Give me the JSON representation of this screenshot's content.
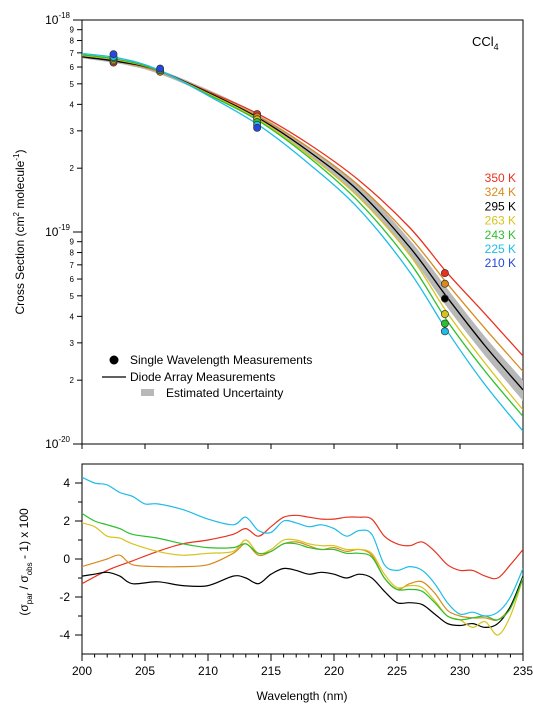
{
  "chart_data": [
    {
      "type": "line",
      "annotation_main": "CCl",
      "annotation_sub": "4",
      "ylabel": "Cross Section (cm",
      "ylabel_sup1": "2",
      "ylabel_mid": " molecule",
      "ylabel_sup2": "-1",
      "ylabel_end": ")",
      "yscale": "log",
      "ylim": [
        1e-20,
        1e-18
      ],
      "xlim": [
        200,
        235
      ],
      "y_decade_labels": [
        {
          "value": 1e-18,
          "base": "10",
          "exp": "-18"
        },
        {
          "value": 1e-19,
          "base": "10",
          "exp": "-19"
        },
        {
          "value": 1e-20,
          "base": "10",
          "exp": "-20"
        }
      ],
      "y_minor_labels": [
        "2",
        "3",
        "4",
        "5",
        "6",
        "7",
        "8",
        "9"
      ],
      "series": [
        {
          "name": "350 K",
          "color": "#e8321e",
          "x": [
            200,
            203,
            206,
            210,
            214,
            218,
            222,
            226,
            229,
            232,
            235
          ],
          "y": [
            6.75e-19,
            6.35e-19,
            5.75e-19,
            4.6e-19,
            3.6e-19,
            2.6e-19,
            1.75e-19,
            1.05e-19,
            6.4e-20,
            4.1e-20,
            2.6e-20
          ]
        },
        {
          "name": "324 K",
          "color": "#d88a1e",
          "x": [
            200,
            203,
            206,
            210,
            214,
            218,
            222,
            226,
            229,
            232,
            235
          ],
          "y": [
            6.75e-19,
            6.35e-19,
            5.75e-19,
            4.55e-19,
            3.5e-19,
            2.5e-19,
            1.65e-19,
            9.5e-20,
            5.7e-20,
            3.5e-20,
            2.2e-20
          ]
        },
        {
          "name": "295 K",
          "color": "#000000",
          "x": [
            200,
            203,
            206,
            210,
            214,
            218,
            222,
            226,
            229,
            232,
            235
          ],
          "y": [
            6.7e-19,
            6.35e-19,
            5.8e-19,
            4.55e-19,
            3.45e-19,
            2.4e-19,
            1.55e-19,
            8.5e-20,
            4.9e-20,
            2.9e-20,
            1.8e-20
          ]
        },
        {
          "name": "263 K",
          "color": "#d6c41e",
          "x": [
            200,
            203,
            206,
            210,
            214,
            218,
            222,
            226,
            229,
            232,
            235
          ],
          "y": [
            6.8e-19,
            6.45e-19,
            5.8e-19,
            4.5e-19,
            3.4e-19,
            2.3e-19,
            1.45e-19,
            7.8e-20,
            4.15e-20,
            2.4e-20,
            1.45e-20
          ]
        },
        {
          "name": "243 K",
          "color": "#2ebf2e",
          "x": [
            200,
            203,
            206,
            210,
            214,
            218,
            222,
            226,
            229,
            232,
            235
          ],
          "y": [
            6.85e-19,
            6.5e-19,
            5.8e-19,
            4.45e-19,
            3.35e-19,
            2.25e-19,
            1.38e-19,
            7.2e-20,
            3.8e-20,
            2.2e-20,
            1.35e-20
          ]
        },
        {
          "name": "225 K",
          "color": "#1ebce8",
          "x": [
            200,
            203,
            206,
            210,
            214,
            218,
            222,
            226,
            229,
            232,
            235
          ],
          "y": [
            6.95e-19,
            6.6e-19,
            5.85e-19,
            4.4e-19,
            3.2e-19,
            2.1e-19,
            1.28e-19,
            6.5e-20,
            3.4e-20,
            1.9e-20,
            1.15e-20
          ]
        },
        {
          "name": "210 K",
          "color": "#2248e0",
          "x": [],
          "y": []
        }
      ],
      "uncertainty_band": {
        "x": [
          200,
          205,
          210,
          214,
          218,
          222,
          226,
          229,
          232,
          235
        ],
        "lower": [
          6.6e-19,
          5.85e-19,
          4.45e-19,
          3.35e-19,
          2.3e-19,
          1.45e-19,
          7.8e-20,
          4.4e-20,
          2.6e-20,
          1.6e-20
        ],
        "upper": [
          6.8e-19,
          6.1e-19,
          4.7e-19,
          3.58e-19,
          2.52e-19,
          1.66e-19,
          9.2e-20,
          5.4e-20,
          3.2e-20,
          2e-20
        ]
      },
      "points": [
        {
          "x": 202.5,
          "y": 6.3e-19,
          "color": "#e8321e"
        },
        {
          "x": 202.5,
          "y": 6.4e-19,
          "color": "#d88a1e"
        },
        {
          "x": 202.5,
          "y": 6.5e-19,
          "color": "#d6c41e"
        },
        {
          "x": 202.5,
          "y": 6.6e-19,
          "color": "#2ebf2e"
        },
        {
          "x": 202.5,
          "y": 6.7e-19,
          "color": "#1ebce8"
        },
        {
          "x": 202.5,
          "y": 6.9e-19,
          "color": "#2248e0"
        },
        {
          "x": 206.2,
          "y": 5.7e-19,
          "color": "#d88a1e"
        },
        {
          "x": 206.2,
          "y": 5.8e-19,
          "color": "#2ebf2e"
        },
        {
          "x": 206.2,
          "y": 5.9e-19,
          "color": "#2248e0"
        },
        {
          "x": 213.9,
          "y": 3.6e-19,
          "color": "#e8321e"
        },
        {
          "x": 213.9,
          "y": 3.5e-19,
          "color": "#d88a1e"
        },
        {
          "x": 213.9,
          "y": 3.4e-19,
          "color": "#d6c41e"
        },
        {
          "x": 213.9,
          "y": 3.3e-19,
          "color": "#2ebf2e"
        },
        {
          "x": 213.9,
          "y": 3.2e-19,
          "color": "#1ebce8"
        },
        {
          "x": 213.9,
          "y": 3.1e-19,
          "color": "#2248e0"
        },
        {
          "x": 228.8,
          "y": 6.4e-20,
          "color": "#e8321e"
        },
        {
          "x": 228.8,
          "y": 5.7e-20,
          "color": "#d88a1e"
        },
        {
          "x": 228.8,
          "y": 4.85e-20,
          "color": "#000000"
        },
        {
          "x": 228.8,
          "y": 4.1e-20,
          "color": "#d6c41e"
        },
        {
          "x": 228.8,
          "y": 3.7e-20,
          "color": "#2ebf2e"
        },
        {
          "x": 228.8,
          "y": 3.4e-20,
          "color": "#1ebce8"
        }
      ],
      "legend": [
        {
          "kind": "point",
          "label": "Single Wavelength Measurements"
        },
        {
          "kind": "line",
          "label": "Diode Array Measurements"
        },
        {
          "kind": "band",
          "label": "Estimated Uncertainty"
        }
      ]
    },
    {
      "type": "line",
      "xlabel": "Wavelength (nm)",
      "ylabel_open": "(σ",
      "ylabel_sub1": "par",
      "ylabel_mid": " / σ",
      "ylabel_sub2": "obs",
      "ylabel_end": " - 1) x 100",
      "xlim": [
        200,
        235
      ],
      "ylim": [
        -5,
        5
      ],
      "xticks": [
        200,
        205,
        210,
        215,
        220,
        225,
        230,
        235
      ],
      "yticks": [
        4,
        2,
        0,
        -2,
        -4
      ],
      "series": [
        {
          "name": "350 K",
          "color": "#e8321e",
          "x": [
            200,
            202,
            204,
            206,
            208,
            210,
            212,
            213,
            214,
            215,
            216,
            217,
            218,
            219,
            220,
            221,
            222,
            223,
            224,
            225,
            226,
            227,
            228,
            229,
            230,
            231,
            232,
            233,
            234,
            235
          ],
          "y": [
            -1.3,
            -0.6,
            -0.1,
            0.4,
            0.8,
            1.0,
            1.3,
            1.6,
            1.2,
            1.7,
            2.2,
            2.3,
            2.2,
            2.1,
            2.1,
            2.2,
            2.2,
            2.1,
            1.2,
            0.8,
            0.7,
            0.9,
            0.4,
            -0.3,
            -0.6,
            -0.6,
            -0.9,
            -1.0,
            -0.3,
            0.5
          ]
        },
        {
          "name": "324 K",
          "color": "#d88a1e",
          "x": [
            200,
            201,
            202,
            203,
            204,
            206,
            208,
            210,
            212,
            213,
            214,
            215,
            216,
            217,
            218,
            219,
            220,
            221,
            222,
            223,
            224,
            225,
            226,
            227,
            228,
            229,
            230,
            231,
            232,
            233,
            234,
            235
          ],
          "y": [
            -0.4,
            -0.2,
            0.0,
            0.2,
            -0.3,
            -0.4,
            -0.4,
            -0.3,
            0.3,
            0.8,
            0.2,
            0.4,
            0.8,
            0.9,
            0.7,
            0.5,
            0.6,
            0.4,
            0.5,
            0.2,
            -1.0,
            -1.6,
            -1.3,
            -1.2,
            -1.8,
            -2.7,
            -3.0,
            -3.1,
            -3.1,
            -3.2,
            -2.5,
            -1.0
          ]
        },
        {
          "name": "295 K",
          "color": "#000000",
          "x": [
            200,
            201,
            202,
            203,
            204,
            206,
            208,
            210,
            212,
            213,
            214,
            215,
            216,
            217,
            218,
            219,
            220,
            221,
            222,
            223,
            224,
            225,
            226,
            227,
            228,
            229,
            230,
            231,
            232,
            233,
            234,
            235
          ],
          "y": [
            -0.9,
            -0.8,
            -0.7,
            -0.9,
            -1.3,
            -1.2,
            -1.4,
            -1.4,
            -0.9,
            -1.0,
            -1.3,
            -0.8,
            -0.5,
            -0.6,
            -0.8,
            -0.7,
            -0.8,
            -1.0,
            -0.8,
            -1.0,
            -1.7,
            -2.3,
            -2.3,
            -2.4,
            -2.9,
            -3.4,
            -3.5,
            -3.4,
            -3.6,
            -3.4,
            -2.5,
            -0.9
          ]
        },
        {
          "name": "263 K",
          "color": "#d6c41e",
          "x": [
            200,
            201,
            202,
            203,
            204,
            206,
            208,
            210,
            212,
            213,
            214,
            215,
            216,
            217,
            218,
            219,
            220,
            221,
            222,
            223,
            224,
            225,
            226,
            227,
            228,
            229,
            230,
            231,
            232,
            233,
            234,
            235
          ],
          "y": [
            1.9,
            1.7,
            1.2,
            1.1,
            0.8,
            0.4,
            0.2,
            0.3,
            0.4,
            1.0,
            0.3,
            0.5,
            1.0,
            1.0,
            0.8,
            0.7,
            0.7,
            0.5,
            0.5,
            0.3,
            -0.8,
            -1.5,
            -1.4,
            -1.5,
            -2.2,
            -3.0,
            -3.2,
            -3.6,
            -3.3,
            -4.0,
            -3.0,
            -1.0
          ]
        },
        {
          "name": "243 K",
          "color": "#2ebf2e",
          "x": [
            200,
            201,
            202,
            203,
            204,
            206,
            208,
            210,
            212,
            213,
            214,
            215,
            216,
            217,
            218,
            219,
            220,
            221,
            222,
            223,
            224,
            225,
            226,
            227,
            228,
            229,
            230,
            231,
            232,
            233,
            234,
            235
          ],
          "y": [
            2.4,
            2.0,
            1.8,
            1.6,
            1.3,
            1.1,
            0.8,
            0.6,
            0.6,
            0.8,
            0.3,
            0.4,
            0.8,
            0.8,
            0.6,
            0.5,
            0.5,
            0.3,
            0.3,
            0.1,
            -1.0,
            -1.6,
            -1.6,
            -1.7,
            -2.3,
            -3.0,
            -3.2,
            -3.1,
            -3.0,
            -3.2,
            -2.6,
            -1.0
          ]
        },
        {
          "name": "225 K",
          "color": "#1ebce8",
          "x": [
            200,
            201,
            202,
            203,
            204,
            205,
            206,
            208,
            210,
            212,
            213,
            214,
            215,
            216,
            217,
            218,
            219,
            220,
            221,
            222,
            223,
            224,
            225,
            226,
            227,
            228,
            229,
            230,
            231,
            232,
            233,
            234,
            235
          ],
          "y": [
            4.3,
            4.0,
            3.9,
            3.5,
            3.3,
            2.9,
            2.9,
            2.6,
            2.1,
            1.8,
            2.2,
            1.5,
            1.4,
            2.0,
            1.9,
            1.7,
            1.8,
            1.6,
            1.2,
            1.5,
            1.3,
            -0.3,
            -0.6,
            -0.4,
            -0.6,
            -1.3,
            -2.3,
            -2.9,
            -2.8,
            -3.0,
            -2.8,
            -2.0,
            -0.5
          ]
        }
      ]
    }
  ]
}
